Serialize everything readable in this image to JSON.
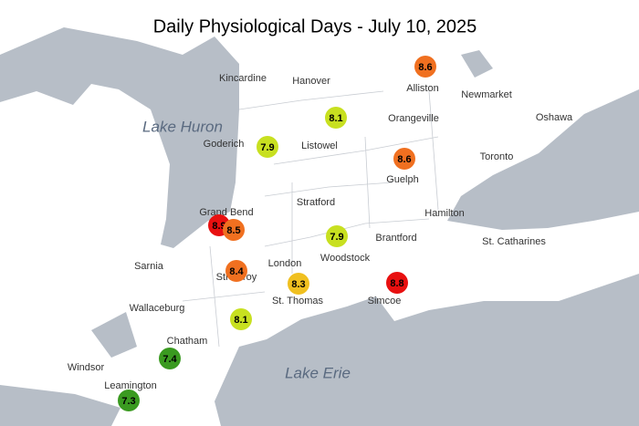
{
  "title": "Daily Physiological Days - July 10, 2025",
  "lakes": [
    "Lake Huron",
    "Lake Erie"
  ],
  "places": [
    "Kincardine",
    "Hanover",
    "Alliston",
    "Newmarket",
    "Orangeville",
    "Oshawa",
    "Goderich",
    "Listowel",
    "Toronto",
    "Guelph",
    "Stratford",
    "Grand Bend",
    "Hamilton",
    "Brantford",
    "St. Catharines",
    "Woodstock",
    "Sarnia",
    "London",
    "Strathroy",
    "St. Thomas",
    "Simcoe",
    "Wallaceburg",
    "Chatham",
    "Windsor",
    "Leamington"
  ],
  "stations": [
    {
      "value": "8.6",
      "color": "#f07020"
    },
    {
      "value": "8.1",
      "color": "#c8e020"
    },
    {
      "value": "7.9",
      "color": "#c8e020"
    },
    {
      "value": "8.6",
      "color": "#f07020"
    },
    {
      "value": "8.9",
      "color": "#e81010"
    },
    {
      "value": "8.5",
      "color": "#f07020"
    },
    {
      "value": "7.9",
      "color": "#c8e020"
    },
    {
      "value": "8.4",
      "color": "#f07020"
    },
    {
      "value": "8.3",
      "color": "#f0c020"
    },
    {
      "value": "8.8",
      "color": "#e81010"
    },
    {
      "value": "8.1",
      "color": "#c8e020"
    },
    {
      "value": "7.4",
      "color": "#3a9a20"
    },
    {
      "value": "7.3",
      "color": "#3a9a20"
    }
  ]
}
